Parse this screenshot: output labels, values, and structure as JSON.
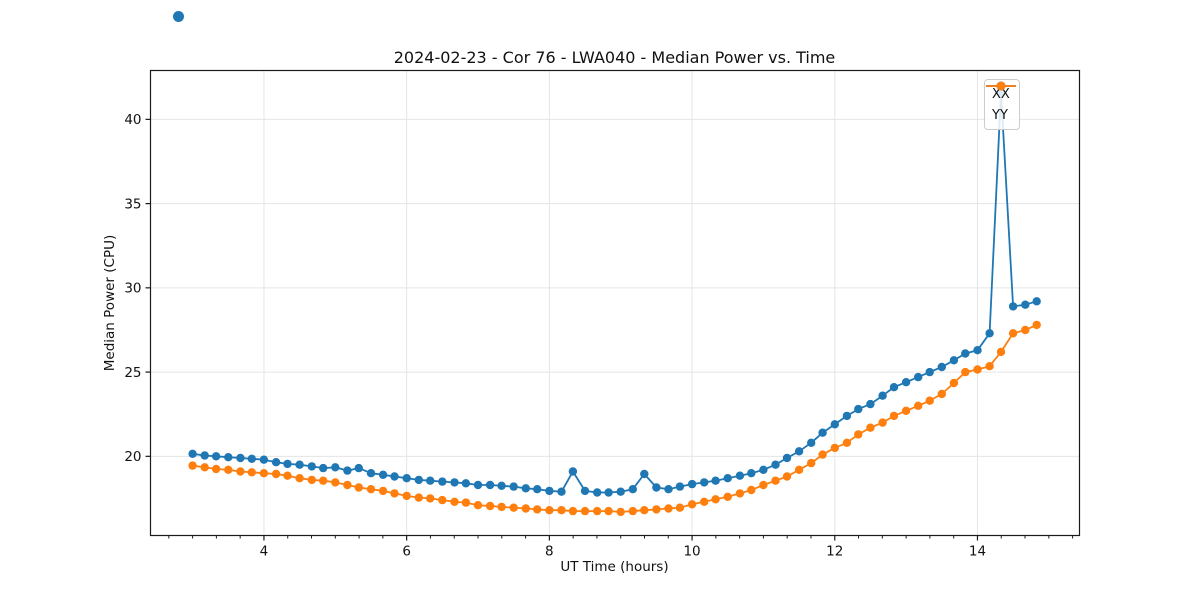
{
  "chart_data": {
    "type": "line",
    "title": "2024-02-23 - Cor 76 - LWA040 - Median Power vs. Time",
    "xlabel": "UT Time (hours)",
    "ylabel": "Median Power (CPU)",
    "xlim": [
      2.41,
      15.43
    ],
    "ylim": [
      15.3,
      42.9
    ],
    "x_major_ticks": [
      4,
      6,
      8,
      10,
      12,
      14
    ],
    "x_minor_step": 0.3333,
    "y_major_ticks": [
      20,
      25,
      30,
      35,
      40
    ],
    "grid": true,
    "legend_position": "upper right",
    "marker": "circle",
    "x": [
      3.0,
      3.17,
      3.33,
      3.5,
      3.67,
      3.83,
      4.0,
      4.17,
      4.33,
      4.5,
      4.67,
      4.83,
      5.0,
      5.17,
      5.33,
      5.5,
      5.67,
      5.83,
      6.0,
      6.17,
      6.33,
      6.5,
      6.67,
      6.83,
      7.0,
      7.17,
      7.33,
      7.5,
      7.67,
      7.83,
      8.0,
      8.17,
      8.33,
      8.5,
      8.67,
      8.83,
      9.0,
      9.17,
      9.33,
      9.5,
      9.67,
      9.83,
      10.0,
      10.17,
      10.33,
      10.5,
      10.67,
      10.83,
      11.0,
      11.17,
      11.33,
      11.5,
      11.67,
      11.83,
      12.0,
      12.17,
      12.33,
      12.5,
      12.67,
      12.83,
      13.0,
      13.17,
      13.33,
      13.5,
      13.67,
      13.83,
      14.0,
      14.17,
      14.33,
      14.5,
      14.67,
      14.83
    ],
    "series": [
      {
        "name": "XX",
        "color": "#1f77b4",
        "values": [
          20.15,
          20.05,
          20.0,
          19.95,
          19.9,
          19.85,
          19.8,
          19.65,
          19.55,
          19.5,
          19.4,
          19.3,
          19.35,
          19.15,
          19.3,
          19.0,
          18.9,
          18.8,
          18.7,
          18.6,
          18.55,
          18.5,
          18.45,
          18.4,
          18.3,
          18.3,
          18.25,
          18.2,
          18.1,
          18.05,
          17.95,
          17.9,
          19.1,
          17.95,
          17.85,
          17.85,
          17.9,
          18.05,
          18.95,
          18.15,
          18.05,
          18.2,
          18.35,
          18.45,
          18.55,
          18.7,
          18.85,
          19.0,
          19.2,
          19.5,
          19.9,
          20.3,
          20.8,
          21.4,
          21.9,
          22.4,
          22.8,
          23.1,
          23.6,
          24.1,
          24.4,
          24.7,
          25.0,
          25.3,
          25.7,
          26.1,
          26.3,
          27.3,
          41.6,
          28.9,
          29.0,
          29.2
        ]
      },
      {
        "name": "YY",
        "color": "#ff7f0e",
        "values": [
          19.45,
          19.35,
          19.25,
          19.2,
          19.1,
          19.05,
          19.0,
          18.95,
          18.85,
          18.7,
          18.6,
          18.55,
          18.45,
          18.3,
          18.15,
          18.05,
          17.95,
          17.8,
          17.65,
          17.55,
          17.5,
          17.4,
          17.3,
          17.25,
          17.1,
          17.05,
          17.0,
          16.95,
          16.9,
          16.85,
          16.8,
          16.8,
          16.75,
          16.75,
          16.75,
          16.75,
          16.7,
          16.75,
          16.8,
          16.85,
          16.9,
          16.95,
          17.15,
          17.3,
          17.45,
          17.6,
          17.8,
          18.0,
          18.3,
          18.55,
          18.8,
          19.2,
          19.6,
          20.1,
          20.5,
          20.8,
          21.3,
          21.7,
          22.0,
          22.4,
          22.7,
          23.0,
          23.3,
          23.7,
          24.35,
          25.0,
          25.15,
          25.35,
          26.2,
          27.3,
          27.5,
          27.8
        ]
      }
    ],
    "colors": {
      "grid": "#e5e5e5",
      "spine": "#1a1a1a",
      "tick_text": "#111111",
      "legend_border": "#cccccc"
    }
  }
}
